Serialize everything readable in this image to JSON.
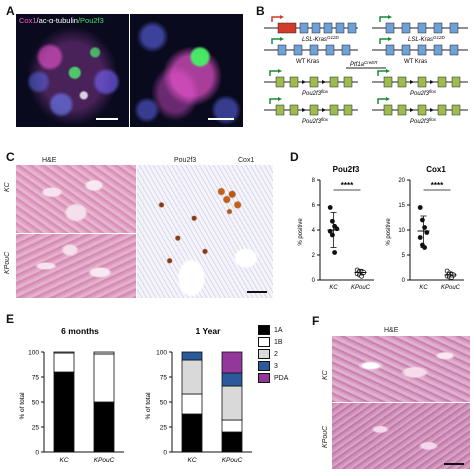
{
  "panels": {
    "A": {
      "letter": "A",
      "stain_label_parts": [
        "Cox1",
        "/ac-α-tubulin",
        "/Pou2f3"
      ],
      "stain_colors": [
        "#ff5ad0",
        "#ffffff",
        "#44e06a"
      ]
    },
    "B": {
      "letter": "B",
      "constructs": [
        {
          "label": "LSL-Kras",
          "sup": "G12D"
        },
        {
          "label": "LSL-Kras",
          "sup": "G12D"
        },
        {
          "label": "WT Kras",
          "sup": ""
        },
        {
          "label": "WT Kras",
          "sup": ""
        },
        {
          "label": "Ptf1a",
          "sup": "CreER"
        },
        {
          "label": "Pou2f3",
          "sup": "flox"
        },
        {
          "label": "Pou2f3",
          "sup": "flox"
        },
        {
          "label": "Pou2f3",
          "sup": "flox"
        },
        {
          "label": "Pou2f3",
          "sup": "flox"
        }
      ],
      "exon_color": "#6fa0d8",
      "pou_exon_color": "#9dbb4f",
      "stop_color": "#d23b2b"
    },
    "C": {
      "letter": "C",
      "col_labels": [
        "H&E",
        "Pou2f3",
        "Cox1"
      ],
      "row_labels": [
        "KC",
        "KPouC"
      ]
    },
    "D": {
      "letter": "D"
    },
    "E": {
      "letter": "E",
      "legend": [
        {
          "label": "1A",
          "color": "#000000"
        },
        {
          "label": "1B",
          "color": "#ffffff"
        },
        {
          "label": "2",
          "color": "#d9d9d9"
        },
        {
          "label": "3",
          "color": "#2b5a9b"
        },
        {
          "label": "PDA",
          "color": "#93379a"
        }
      ]
    },
    "F": {
      "letter": "F",
      "col_label": "H&E",
      "row_labels": [
        "KC",
        "KPouC"
      ]
    }
  },
  "chart_data": [
    {
      "type": "scatter",
      "title": "Pou2f3",
      "ylabel": "% positive",
      "categories": [
        "KC",
        "KPouC"
      ],
      "ylim": [
        0,
        8
      ],
      "yticks": [
        0,
        2,
        4,
        6,
        8
      ],
      "significance": "****",
      "series": [
        {
          "name": "KC",
          "values": [
            5.8,
            4.7,
            4.3,
            4.1,
            3.9,
            3.6,
            2.2
          ],
          "mean": 4.0,
          "sd_low": 2.6,
          "sd_high": 5.4
        },
        {
          "name": "KPouC",
          "values": [
            0.8,
            0.7,
            0.7,
            0.6,
            0.5,
            0.4,
            0.3
          ],
          "mean": 0.6,
          "sd_low": 0.4,
          "sd_high": 0.8
        }
      ]
    },
    {
      "type": "scatter",
      "title": "Cox1",
      "ylabel": "% positive",
      "categories": [
        "KC",
        "KPouC"
      ],
      "ylim": [
        0,
        20
      ],
      "yticks": [
        0,
        5,
        10,
        15,
        20
      ],
      "significance": "****",
      "series": [
        {
          "name": "KC",
          "values": [
            14.5,
            12.0,
            10.5,
            9.5,
            8.5,
            7.0,
            6.5
          ],
          "mean": 9.8,
          "sd_low": 6.5,
          "sd_high": 12.8
        },
        {
          "name": "KPouC",
          "values": [
            1.8,
            1.4,
            1.2,
            1.0,
            0.8,
            0.6,
            0.5
          ],
          "mean": 1.0,
          "sd_low": 0.6,
          "sd_high": 1.5
        }
      ]
    },
    {
      "type": "bar",
      "title": "6 months",
      "ylabel": "% of total",
      "categories": [
        "KC",
        "KPouC"
      ],
      "ylim": [
        0,
        100
      ],
      "yticks": [
        0,
        25,
        50,
        75,
        100
      ],
      "stacked": true,
      "series": [
        {
          "name": "1A",
          "values": [
            80,
            50
          ]
        },
        {
          "name": "1B",
          "values": [
            19,
            48
          ]
        },
        {
          "name": "2",
          "values": [
            1,
            2
          ]
        },
        {
          "name": "3",
          "values": [
            0,
            0
          ]
        },
        {
          "name": "PDA",
          "values": [
            0,
            0
          ]
        }
      ]
    },
    {
      "type": "bar",
      "title": "1 Year",
      "ylabel": "% of total",
      "categories": [
        "KC",
        "KPouC"
      ],
      "ylim": [
        0,
        100
      ],
      "yticks": [
        0,
        25,
        50,
        75,
        100
      ],
      "stacked": true,
      "series": [
        {
          "name": "1A",
          "values": [
            38,
            20
          ]
        },
        {
          "name": "1B",
          "values": [
            20,
            12
          ]
        },
        {
          "name": "2",
          "values": [
            34,
            34
          ]
        },
        {
          "name": "3",
          "values": [
            8,
            13
          ]
        },
        {
          "name": "PDA",
          "values": [
            0,
            21
          ]
        }
      ]
    }
  ]
}
